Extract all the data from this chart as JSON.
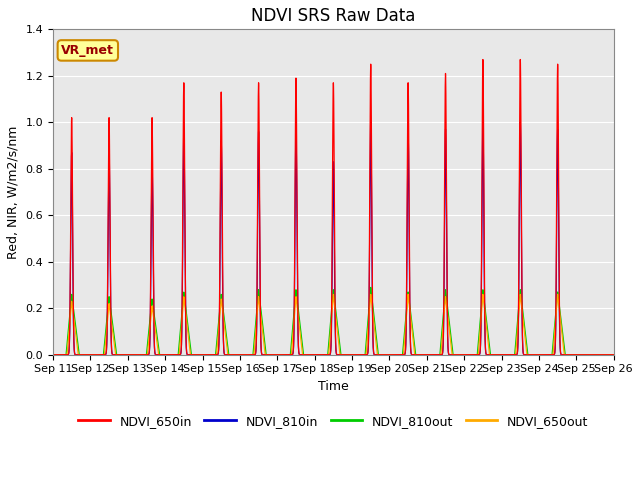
{
  "title": "NDVI SRS Raw Data",
  "xlabel": "Time",
  "ylabel": "Red, NIR, W/m2/s/nm",
  "ylim": [
    0.0,
    1.4
  ],
  "yticks": [
    0.0,
    0.2,
    0.4,
    0.6,
    0.8,
    1.0,
    1.2,
    1.4
  ],
  "xtick_labels": [
    "Sep 11",
    "Sep 12",
    "Sep 13",
    "Sep 14",
    "Sep 15",
    "Sep 16",
    "Sep 17",
    "Sep 18",
    "Sep 19",
    "Sep 20",
    "Sep 21",
    "Sep 22",
    "Sep 23",
    "Sep 24",
    "Sep 25",
    "Sep 26"
  ],
  "xtick_positions": [
    0,
    1,
    2,
    3,
    4,
    5,
    6,
    7,
    8,
    9,
    10,
    11,
    12,
    13,
    14,
    15
  ],
  "legend_labels": [
    "NDVI_650in",
    "NDVI_810in",
    "NDVI_810out",
    "NDVI_650out"
  ],
  "legend_colors": [
    "#ff0000",
    "#0000cc",
    "#00cc00",
    "#ffaa00"
  ],
  "background_color": "#e8e8e8",
  "annotation_text": "VR_met",
  "annotation_bg": "#ffff99",
  "annotation_border": "#cc8800",
  "peak_red": [
    1.02,
    1.02,
    1.02,
    1.17,
    1.13,
    1.17,
    1.19,
    1.17,
    1.25,
    1.17,
    1.21,
    1.27,
    1.27,
    1.25
  ],
  "peak_blue": [
    0.87,
    0.87,
    0.82,
    0.96,
    0.92,
    0.96,
    0.96,
    0.83,
    1.0,
    0.95,
    0.97,
    1.0,
    1.0,
    0.97
  ],
  "peak_green": [
    0.26,
    0.25,
    0.24,
    0.27,
    0.26,
    0.28,
    0.28,
    0.28,
    0.29,
    0.27,
    0.28,
    0.28,
    0.28,
    0.27
  ],
  "peak_orange": [
    0.23,
    0.22,
    0.21,
    0.25,
    0.24,
    0.25,
    0.25,
    0.26,
    0.26,
    0.26,
    0.25,
    0.26,
    0.26,
    0.26
  ],
  "peak_days": [
    0.5,
    1.5,
    2.65,
    3.5,
    4.5,
    5.5,
    6.5,
    7.5,
    8.5,
    9.5,
    10.5,
    11.5,
    12.5,
    13.5
  ],
  "title_fontsize": 12,
  "legend_fontsize": 9,
  "axis_label_fontsize": 9,
  "tick_fontsize": 8
}
